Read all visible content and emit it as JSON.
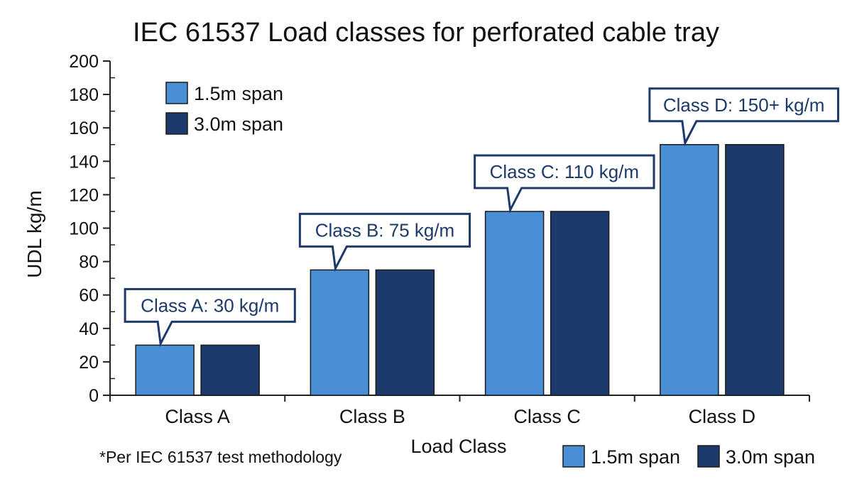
{
  "chart_data": {
    "type": "bar",
    "title": "IEC 61537 Load classes for perforated cable tray",
    "xlabel": "Load Class",
    "ylabel": "UDL kg/m",
    "ylim": [
      0,
      200
    ],
    "yticks": [
      0,
      20,
      40,
      60,
      80,
      100,
      120,
      140,
      160,
      180,
      200
    ],
    "categories": [
      "Class A",
      "Class B",
      "Class C",
      "Class D"
    ],
    "series": [
      {
        "name": "1.5m span",
        "values": [
          30,
          75,
          110,
          150
        ],
        "color": "#4a8fd6"
      },
      {
        "name": "3.0m span",
        "values": [
          30,
          75,
          110,
          150
        ],
        "color": "#1c3a6b"
      }
    ],
    "annotations": [
      {
        "category": "Class A",
        "text": "Class A: 30 kg/m"
      },
      {
        "category": "Class B",
        "text": "Class B: 75 kg/m"
      },
      {
        "category": "Class C",
        "text": "Class C: 110 kg/m"
      },
      {
        "category": "Class D",
        "text": "Class D: 150+ kg/m"
      }
    ],
    "footnote": "*Per IEC 61537 test methodology",
    "legend_positions": [
      "top-left",
      "bottom-right"
    ],
    "grid": false,
    "colors": {
      "axis": "#222222",
      "callout_border": "#1c3a6b",
      "callout_text": "#1c3a6b"
    }
  }
}
